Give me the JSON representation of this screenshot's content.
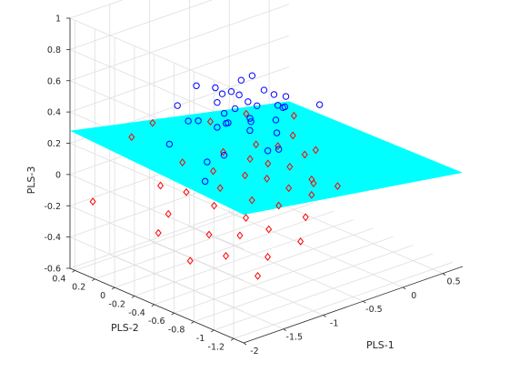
{
  "chart_data": {
    "type": "scatter3d",
    "xlabel": "PLS-1",
    "ylabel": "PLS-2",
    "zlabel": "PLS-3",
    "xlim": [
      -2,
      0.75
    ],
    "ylim": [
      -1.3,
      0.45
    ],
    "zlim": [
      -0.6,
      1
    ],
    "xticks": [
      "-2",
      "-1.5",
      "-1",
      "-0.5",
      "0",
      "0.5"
    ],
    "yticks": [
      "0.4",
      "0.2",
      "0",
      "-0.2",
      "-0.4",
      "-0.6",
      "-0.8",
      "-1",
      "-1.2"
    ],
    "zticks": [
      "1",
      "0.8",
      "0.6",
      "0.4",
      "0.2",
      "0",
      "-0.2",
      "-0.4",
      "-0.6"
    ],
    "grid": true,
    "plane": {
      "color": "#00FFFF",
      "z": 0.1
    },
    "series": [
      {
        "marker": "circle",
        "color": "#0000FF",
        "points": [
          [
            -1.25,
            0.05,
            0.17
          ],
          [
            -1.2,
            -0.1,
            0.35
          ],
          [
            -0.95,
            0.0,
            0.28
          ],
          [
            -0.9,
            -0.15,
            0.27
          ],
          [
            -0.85,
            -0.2,
            0.3
          ],
          [
            -0.7,
            -0.1,
            0.25
          ],
          [
            -0.65,
            0.05,
            0.33
          ],
          [
            -0.6,
            -0.25,
            0.28
          ],
          [
            -0.55,
            -0.05,
            0.3
          ],
          [
            -0.5,
            0.1,
            0.22
          ],
          [
            -0.45,
            -0.1,
            0.34
          ],
          [
            -0.4,
            0.2,
            0.3
          ],
          [
            -0.35,
            -0.3,
            0.26
          ],
          [
            -0.3,
            0.0,
            0.18
          ],
          [
            -0.25,
            0.15,
            0.28
          ],
          [
            -0.2,
            -0.2,
            0.3
          ],
          [
            -0.15,
            0.05,
            0.22
          ],
          [
            -0.1,
            0.25,
            0.32
          ],
          [
            -0.05,
            -0.15,
            0.25
          ],
          [
            0.0,
            0.1,
            0.28
          ],
          [
            0.05,
            -0.05,
            0.2
          ],
          [
            0.1,
            0.3,
            0.3
          ],
          [
            0.15,
            0.0,
            0.24
          ],
          [
            0.2,
            -0.3,
            0.26
          ],
          [
            -0.8,
            -0.4,
            0.3
          ],
          [
            -0.7,
            -0.5,
            0.18
          ],
          [
            -1.0,
            -0.3,
            0.15
          ],
          [
            -1.15,
            -0.25,
            0.12
          ],
          [
            -0.6,
            0.3,
            0.36
          ],
          [
            -0.3,
            0.35,
            0.28
          ],
          [
            -0.1,
            0.35,
            0.22
          ],
          [
            0.25,
            0.2,
            0.18
          ],
          [
            -0.9,
            0.25,
            0.3
          ],
          [
            -0.5,
            -0.45,
            0.14
          ],
          [
            -1.3,
            -0.35,
            0.05
          ],
          [
            -0.4,
            -0.35,
            0.2
          ]
        ]
      },
      {
        "marker": "diamond",
        "color": "#FF0000",
        "points": [
          [
            -1.9,
            0.3,
            -0.15
          ],
          [
            -1.7,
            -0.2,
            -0.25
          ],
          [
            -1.55,
            -0.4,
            -0.4
          ],
          [
            -1.45,
            -0.1,
            -0.2
          ],
          [
            -1.35,
            -0.6,
            -0.35
          ],
          [
            -1.3,
            0.1,
            -0.1
          ],
          [
            -1.25,
            -0.35,
            -0.3
          ],
          [
            -1.2,
            -0.8,
            -0.45
          ],
          [
            -1.1,
            0.0,
            -0.15
          ],
          [
            -1.05,
            -0.5,
            -0.3
          ],
          [
            -1.0,
            -0.2,
            -0.2
          ],
          [
            -0.95,
            -0.7,
            -0.4
          ],
          [
            -0.9,
            0.2,
            -0.05
          ],
          [
            -0.85,
            -0.4,
            -0.25
          ],
          [
            -0.8,
            -0.1,
            -0.15
          ],
          [
            -0.75,
            -0.55,
            -0.3
          ],
          [
            -0.7,
            0.05,
            -0.1
          ],
          [
            -0.65,
            -0.3,
            -0.2
          ],
          [
            -0.6,
            -0.75,
            -0.35
          ],
          [
            -0.55,
            -0.15,
            -0.1
          ],
          [
            -0.5,
            -0.45,
            -0.22
          ],
          [
            -0.45,
            0.15,
            -0.05
          ],
          [
            -0.4,
            -0.25,
            -0.12
          ],
          [
            -0.35,
            -0.6,
            -0.28
          ],
          [
            -0.3,
            0.0,
            -0.08
          ],
          [
            -0.25,
            -0.35,
            -0.18
          ],
          [
            -0.2,
            -0.1,
            -0.1
          ],
          [
            -0.15,
            -0.5,
            -0.2
          ],
          [
            -0.1,
            0.1,
            -0.05
          ],
          [
            -0.05,
            -0.2,
            -0.12
          ],
          [
            0.0,
            -0.4,
            -0.18
          ],
          [
            0.05,
            0.0,
            -0.06
          ],
          [
            0.1,
            -0.3,
            -0.2
          ],
          [
            0.2,
            -0.15,
            -0.1
          ],
          [
            0.3,
            0.05,
            -0.05
          ],
          [
            0.4,
            -0.1,
            -0.12
          ],
          [
            0.55,
            -0.2,
            -0.35
          ],
          [
            -1.6,
            0.15,
            0.25
          ],
          [
            -1.15,
            0.3,
            0.22
          ],
          [
            -0.3,
            0.4,
            0.05
          ],
          [
            0.15,
            0.4,
            0.02
          ],
          [
            0.5,
            0.2,
            0.0
          ]
        ]
      }
    ]
  }
}
